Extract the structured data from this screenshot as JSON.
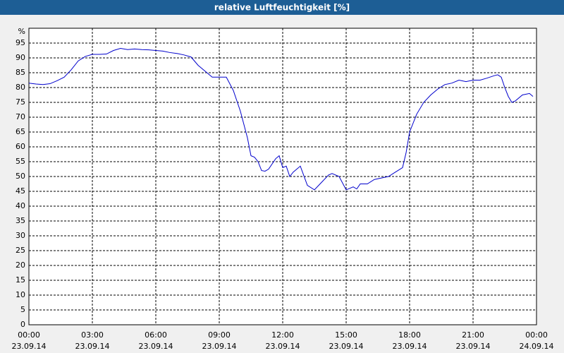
{
  "chart_data": {
    "type": "line",
    "title": "relative Luftfeuchtigkeit [%]",
    "y_unit": "%",
    "x": [
      "23.09.14 00:00",
      "23.09.14 00:20",
      "23.09.14 00:40",
      "23.09.14 01:00",
      "23.09.14 01:20",
      "23.09.14 01:40",
      "23.09.14 02:00",
      "23.09.14 02:20",
      "23.09.14 02:40",
      "23.09.14 03:00",
      "23.09.14 03:20",
      "23.09.14 03:40",
      "23.09.14 04:00",
      "23.09.14 04:20",
      "23.09.14 04:40",
      "23.09.14 05:00",
      "23.09.14 05:20",
      "23.09.14 05:40",
      "23.09.14 06:00",
      "23.09.14 06:20",
      "23.09.14 06:40",
      "23.09.14 07:00",
      "23.09.14 07:20",
      "23.09.14 07:40",
      "23.09.14 08:00",
      "23.09.14 08:20",
      "23.09.14 08:40",
      "23.09.14 09:00",
      "23.09.14 09:20",
      "23.09.14 09:40",
      "23.09.14 10:00",
      "23.09.14 10:20",
      "23.09.14 10:30",
      "23.09.14 10:40",
      "23.09.14 10:50",
      "23.09.14 11:00",
      "23.09.14 11:10",
      "23.09.14 11:20",
      "23.09.14 11:40",
      "23.09.14 11:50",
      "23.09.14 12:00",
      "23.09.14 12:10",
      "23.09.14 12:20",
      "23.09.14 12:30",
      "23.09.14 12:50",
      "23.09.14 13:10",
      "23.09.14 13:30",
      "23.09.14 13:50",
      "23.09.14 14:10",
      "23.09.14 14:20",
      "23.09.14 14:40",
      "23.09.14 15:00",
      "23.09.14 15:10",
      "23.09.14 15:20",
      "23.09.14 15:30",
      "23.09.14 15:40",
      "23.09.14 16:00",
      "23.09.14 16:20",
      "23.09.14 16:40",
      "23.09.14 17:00",
      "23.09.14 17:20",
      "23.09.14 17:40",
      "23.09.14 17:50",
      "23.09.14 18:00",
      "23.09.14 18:20",
      "23.09.14 18:40",
      "23.09.14 19:00",
      "23.09.14 19:20",
      "23.09.14 19:40",
      "23.09.14 20:00",
      "23.09.14 20:20",
      "23.09.14 20:40",
      "23.09.14 21:00",
      "23.09.14 21:20",
      "23.09.14 21:40",
      "23.09.14 22:00",
      "23.09.14 22:10",
      "23.09.14 22:20",
      "23.09.14 22:30",
      "23.09.14 22:40",
      "23.09.14 22:50",
      "23.09.14 23:00",
      "23.09.14 23:20",
      "23.09.14 23:40",
      "23.09.14 23:50"
    ],
    "series": [
      {
        "name": "relative Luftfeuchtigkeit",
        "color": "#0000cc",
        "values": [
          81.5,
          81.2,
          81,
          81.3,
          82.3,
          83.5,
          86,
          89,
          90.5,
          91.2,
          91.2,
          91.3,
          92.5,
          93.2,
          92.8,
          93,
          92.8,
          92.7,
          92.5,
          92.3,
          91.8,
          91.5,
          91,
          90.3,
          87.5,
          85.5,
          83.5,
          83.5,
          83.5,
          79,
          72,
          63,
          57,
          56.5,
          55,
          52,
          51.8,
          52.5,
          56,
          57,
          53,
          53.5,
          50,
          51.5,
          53.5,
          47,
          45.5,
          48,
          50.5,
          51,
          50,
          45.5,
          46,
          46.5,
          45.8,
          47.5,
          47.5,
          49,
          49.5,
          50,
          51.5,
          53,
          58,
          65,
          71,
          75,
          77.5,
          79.5,
          81,
          81.5,
          82.5,
          82,
          82.5,
          82.5,
          83.2,
          84,
          84.3,
          83.5,
          80,
          77,
          75,
          75.5,
          77.5,
          78,
          77
        ]
      }
    ],
    "xlim": [
      "23.09.14 00:00",
      "24.09.14 00:00"
    ],
    "xticks": [
      {
        "time": "00:00",
        "date": "23.09.14"
      },
      {
        "time": "03:00",
        "date": "23.09.14"
      },
      {
        "time": "06:00",
        "date": "23.09.14"
      },
      {
        "time": "09:00",
        "date": "23.09.14"
      },
      {
        "time": "12:00",
        "date": "23.09.14"
      },
      {
        "time": "15:00",
        "date": "23.09.14"
      },
      {
        "time": "18:00",
        "date": "23.09.14"
      },
      {
        "time": "21:00",
        "date": "23.09.14"
      },
      {
        "time": "00:00",
        "date": "24.09.14"
      }
    ],
    "ylim": [
      0,
      100
    ],
    "yticks": [
      0,
      5,
      10,
      15,
      20,
      25,
      30,
      35,
      40,
      45,
      50,
      55,
      60,
      65,
      70,
      75,
      80,
      85,
      90,
      95
    ],
    "grid": true
  }
}
